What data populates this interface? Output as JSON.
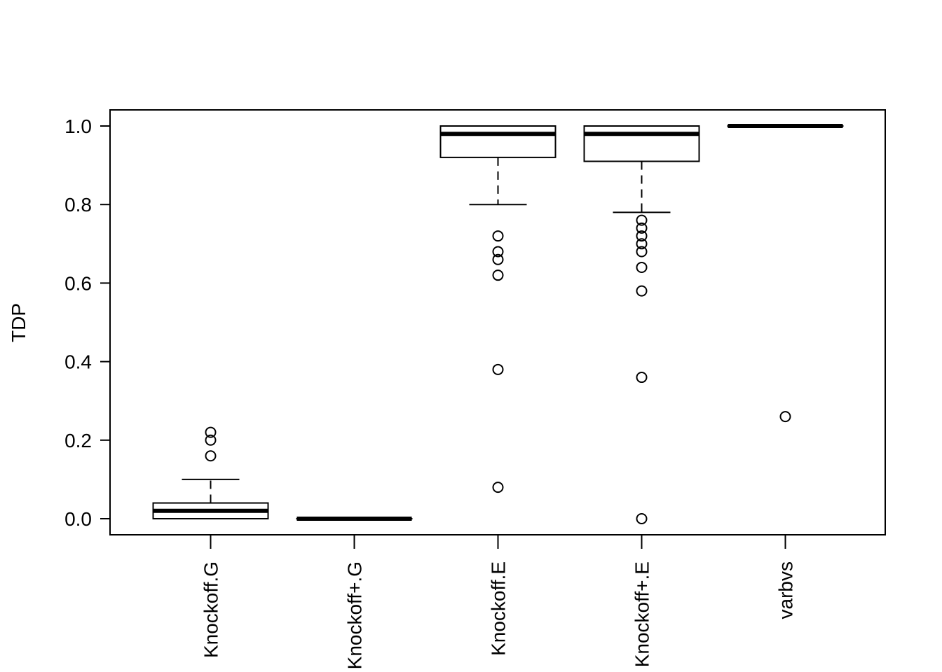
{
  "chart_data": {
    "type": "boxplot",
    "ylabel": "TDP",
    "xlabel": "",
    "ylim": [
      -0.04,
      1.04
    ],
    "yticks": [
      0.0,
      0.2,
      0.4,
      0.6,
      0.8,
      1.0
    ],
    "ytick_labels": [
      "0.0",
      "0.2",
      "0.4",
      "0.6",
      "0.8",
      "1.0"
    ],
    "categories": [
      "Knockoff.G",
      "Knockoff+.G",
      "Knockoff.E",
      "Knockoff+.E",
      "varbvs"
    ],
    "boxes": [
      {
        "name": "Knockoff.G",
        "whisker_low": 0.0,
        "q1": 0.0,
        "median": 0.02,
        "q3": 0.04,
        "whisker_high": 0.1,
        "outliers": [
          0.16,
          0.2,
          0.22
        ]
      },
      {
        "name": "Knockoff+.G",
        "whisker_low": 0.0,
        "q1": 0.0,
        "median": 0.0,
        "q3": 0.0,
        "whisker_high": 0.0,
        "outliers": []
      },
      {
        "name": "Knockoff.E",
        "whisker_low": 0.8,
        "q1": 0.92,
        "median": 0.98,
        "q3": 1.0,
        "whisker_high": 1.0,
        "outliers": [
          0.72,
          0.68,
          0.66,
          0.62,
          0.38,
          0.08
        ]
      },
      {
        "name": "Knockoff+.E",
        "whisker_low": 0.78,
        "q1": 0.91,
        "median": 0.98,
        "q3": 1.0,
        "whisker_high": 1.0,
        "outliers": [
          0.76,
          0.74,
          0.72,
          0.7,
          0.68,
          0.64,
          0.58,
          0.36,
          0.0
        ]
      },
      {
        "name": "varbvs",
        "whisker_low": 1.0,
        "q1": 1.0,
        "median": 1.0,
        "q3": 1.0,
        "whisker_high": 1.0,
        "outliers": [
          0.26
        ]
      }
    ],
    "grid": false,
    "legend": "none"
  }
}
